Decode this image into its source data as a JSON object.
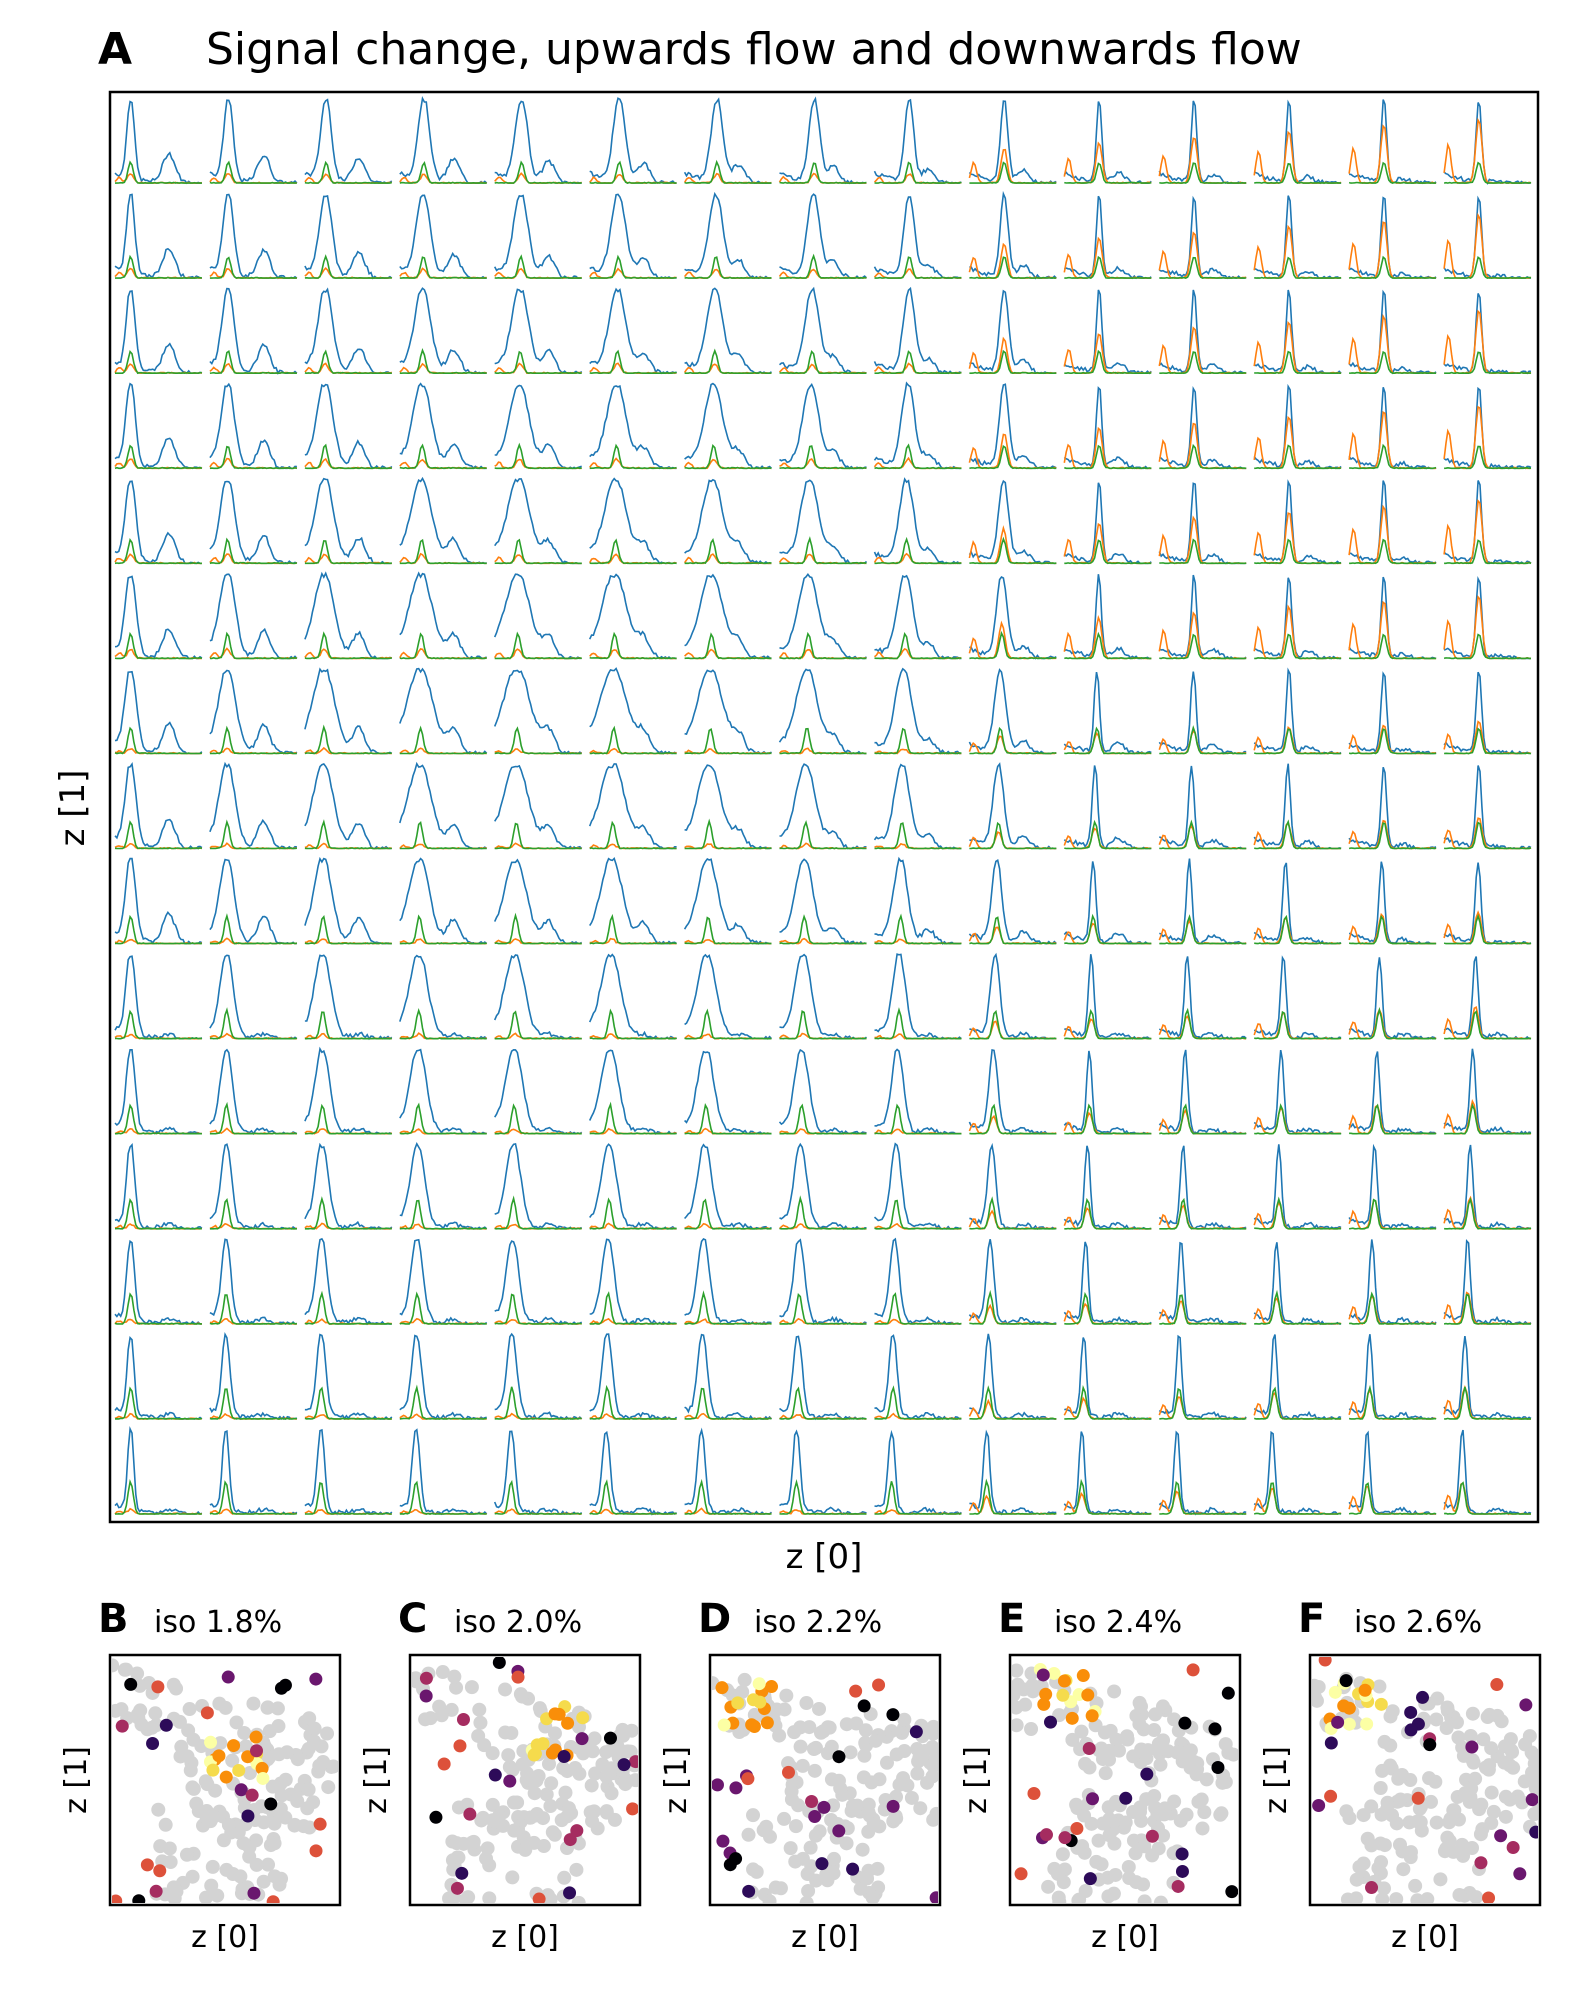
{
  "panel_a": {
    "letter": "A",
    "title": "Signal change, upwards flow and downwards flow",
    "xlabel": "z [0]",
    "ylabel": "z [1]"
  },
  "small_panels": [
    {
      "letter": "B",
      "title": "iso 1.8%",
      "xlabel": "z [0]",
      "ylabel": "z [1]"
    },
    {
      "letter": "C",
      "title": "iso 2.0%",
      "xlabel": "z [0]",
      "ylabel": "z [1]"
    },
    {
      "letter": "D",
      "title": "iso 2.2%",
      "xlabel": "z [0]",
      "ylabel": "z [1]"
    },
    {
      "letter": "E",
      "title": "iso 2.4%",
      "xlabel": "z [0]",
      "ylabel": "z [1]"
    },
    {
      "letter": "F",
      "title": "iso 2.6%",
      "xlabel": "z [0]",
      "ylabel": "z [1]"
    }
  ],
  "chart_data": [
    {
      "type": "line",
      "panel": "A",
      "grid_layout": {
        "rows": 15,
        "cols": 15
      },
      "series_colors": {
        "blue": "#1f77b4",
        "orange": "#ff7f0e",
        "green": "#2ca02c"
      },
      "title": "Signal change, upwards flow and downwards flow",
      "xlabel": "z [0]",
      "ylabel": "z [1]",
      "axis_ticks": "none"
    },
    {
      "type": "scatter",
      "panel": "B",
      "title": "iso 1.8%",
      "xlabel": "z [0]",
      "ylabel": "z [1]",
      "background_color": "#d3d3d3",
      "colormap": "inferno"
    },
    {
      "type": "scatter",
      "panel": "C",
      "title": "iso 2.0%",
      "xlabel": "z [0]",
      "ylabel": "z [1]",
      "background_color": "#d3d3d3",
      "colormap": "inferno"
    },
    {
      "type": "scatter",
      "panel": "D",
      "title": "iso 2.2%",
      "xlabel": "z [0]",
      "ylabel": "z [1]",
      "background_color": "#d3d3d3",
      "colormap": "inferno"
    },
    {
      "type": "scatter",
      "panel": "E",
      "title": "iso 2.4%",
      "xlabel": "z [0]",
      "ylabel": "z [1]",
      "background_color": "#d3d3d3",
      "colormap": "inferno"
    },
    {
      "type": "scatter",
      "panel": "F",
      "title": "iso 2.6%",
      "xlabel": "z [0]",
      "ylabel": "z [1]",
      "background_color": "#d3d3d3",
      "colormap": "inferno"
    }
  ]
}
